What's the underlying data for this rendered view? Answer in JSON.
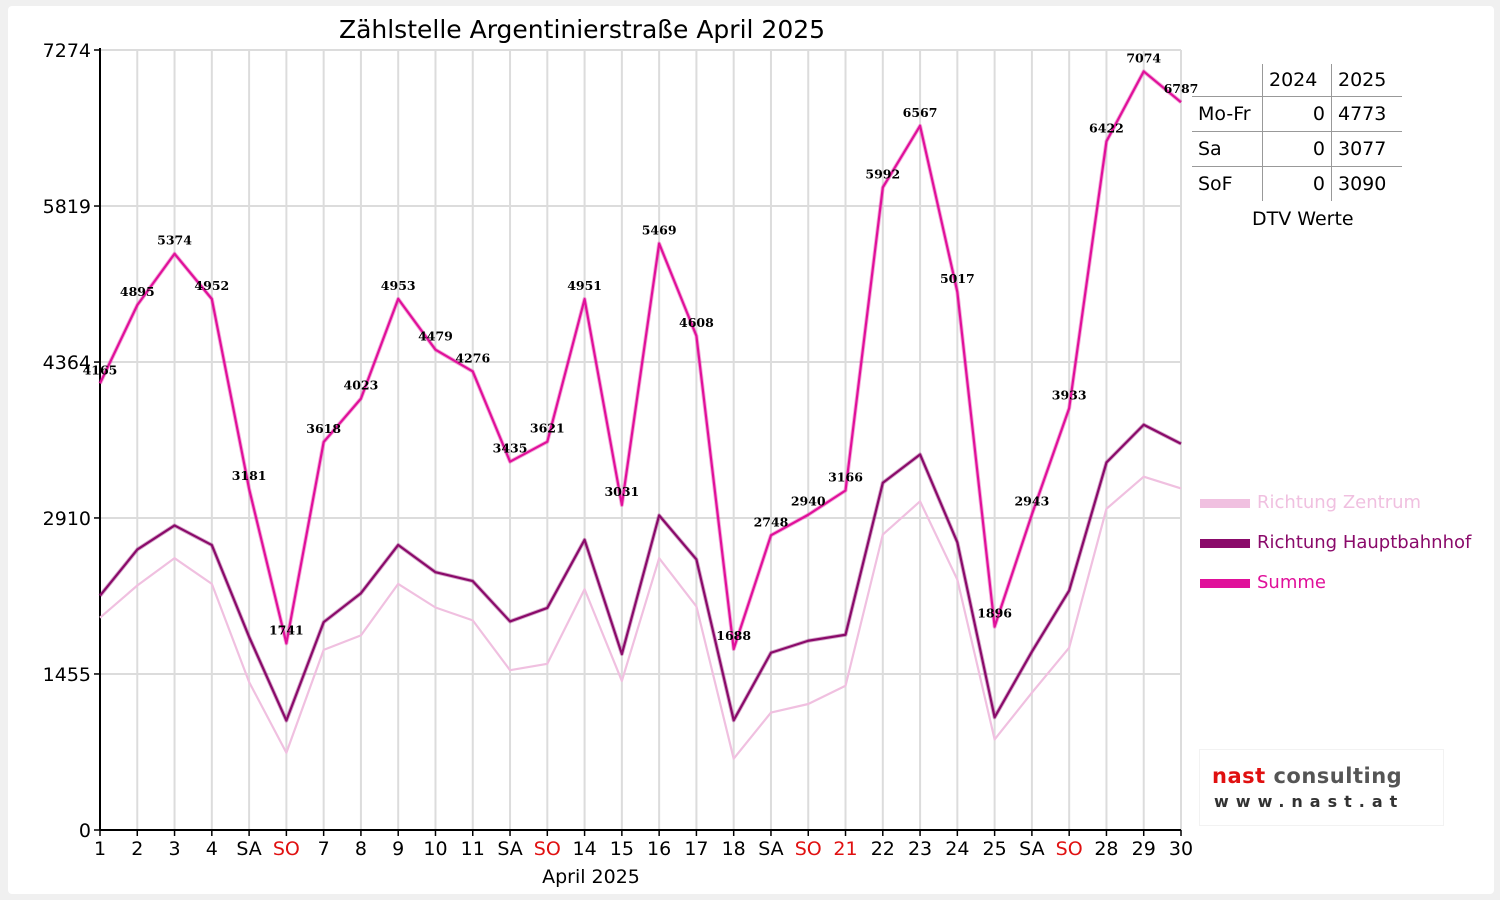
{
  "chart_data": {
    "type": "line",
    "title": "Zählstelle Argentinierstraße April 2025",
    "xlabel": "April 2025",
    "ylabel": "",
    "ylim": [
      0,
      7274
    ],
    "yticks": [
      "0",
      "1455",
      "2910",
      "4364",
      "5819",
      "7274"
    ],
    "categories": [
      "1",
      "2",
      "3",
      "4",
      "SA",
      "SO",
      "7",
      "8",
      "9",
      "10",
      "11",
      "SA",
      "SO",
      "14",
      "15",
      "16",
      "17",
      "18",
      "SA",
      "SO",
      "21",
      "22",
      "23",
      "24",
      "25",
      "SA",
      "SO",
      "28",
      "29",
      "30"
    ],
    "red_categories": [
      5,
      12,
      19,
      20,
      26
    ],
    "grid": true,
    "legend_position": "right",
    "series": [
      {
        "name": "Richtung Zentrum",
        "color": "#f0c0e0",
        "values": [
          1980,
          2280,
          2535,
          2295,
          1380,
          720,
          1680,
          1815,
          2295,
          2075,
          1955,
          1490,
          1550,
          2245,
          1390,
          2535,
          2085,
          665,
          1095,
          1175,
          1345,
          2755,
          3065,
          2335,
          845,
          1280,
          1700,
          2995,
          3295,
          3185
        ]
      },
      {
        "name": "Richtung Hauptbahnhof",
        "color": "#8a0a6a",
        "values": [
          2185,
          2615,
          2840,
          2657,
          1801,
          1021,
          1938,
          2208,
          2658,
          2404,
          2321,
          1945,
          2071,
          2706,
          1641,
          2934,
          2523,
          1023,
          1653,
          1765,
          1821,
          3237,
          3502,
          2682,
          1051,
          1663,
          2233,
          3427,
          3779,
          3602
        ]
      },
      {
        "name": "Summe",
        "color": "#e0109a",
        "values": [
          4165,
          4895,
          5374,
          4952,
          3181,
          1741,
          3618,
          4023,
          4953,
          4479,
          4276,
          3435,
          3621,
          4951,
          3031,
          5469,
          4608,
          1688,
          2748,
          2940,
          3166,
          5992,
          6567,
          5017,
          1896,
          2943,
          3933,
          6422,
          7074,
          6787
        ],
        "labels": [
          "4165",
          "4895",
          "5374",
          "4952",
          "3181",
          "1741",
          "3618",
          "4023",
          "4953",
          "4479",
          "4276",
          "3435",
          "3621",
          "4951",
          "3031",
          "5469",
          "4608",
          "1688",
          "2748",
          "2940",
          "3166",
          "5992",
          "6567",
          "5017",
          "1896",
          "2943",
          "3933",
          "6422",
          "7074",
          "6787"
        ]
      }
    ]
  },
  "dtv_table": {
    "columns": [
      "",
      "2024",
      "2025"
    ],
    "rows": [
      [
        "Mo-Fr",
        "0",
        "4773"
      ],
      [
        "Sa",
        "0",
        "3077"
      ],
      [
        "SoF",
        "0",
        "3090"
      ]
    ],
    "caption": "DTV Werte"
  },
  "logo": {
    "main": "nast consulting",
    "url": "www.nast.at",
    "color_red": "#e01010",
    "color_gray": "#555555"
  }
}
